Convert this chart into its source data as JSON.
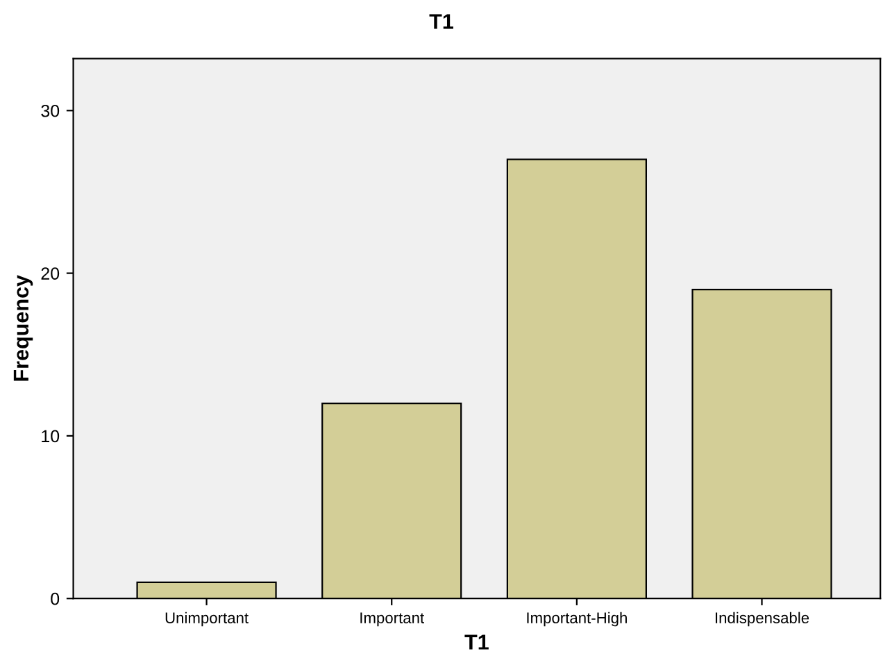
{
  "chart_data": {
    "type": "bar",
    "title": "T1",
    "xlabel": "T1",
    "ylabel": "Frequency",
    "categories": [
      "Unimportant",
      "Important",
      "Important-High",
      "Indispensable"
    ],
    "values": [
      1,
      12,
      27,
      19
    ],
    "color": "#d3ce97",
    "ylim": [
      0,
      33.2
    ],
    "yticks": [
      0,
      10,
      20,
      30
    ],
    "grid": false,
    "legend": false
  }
}
